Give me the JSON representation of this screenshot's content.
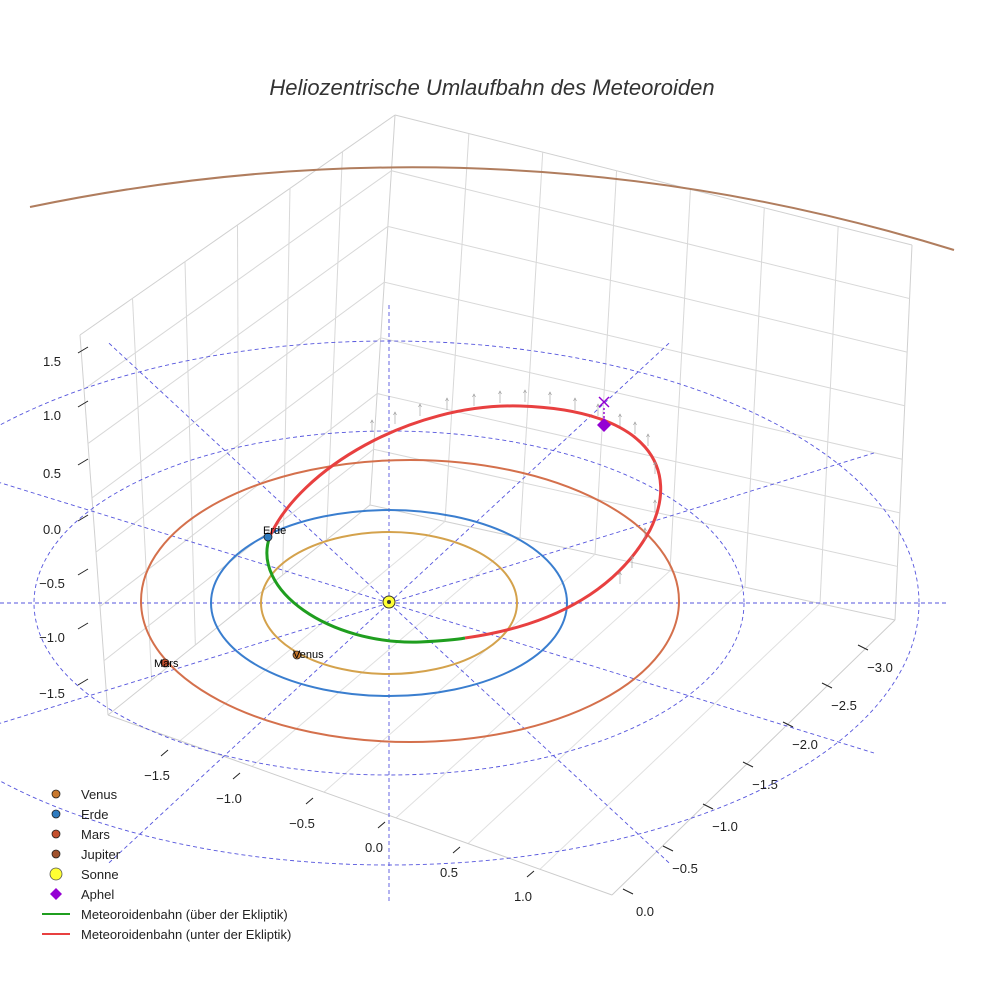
{
  "chart_data": {
    "type": "line",
    "title": "Heliozentrische Umlaufbahn des Meteoroiden",
    "xlabel": "",
    "ylabel": "",
    "zlabel": "",
    "axis_ticks": {
      "x": [
        "−1.5",
        "−1.0",
        "−0.5",
        "0.0",
        "0.5",
        "1.0"
      ],
      "y": [
        "0.0",
        "−0.5",
        "−1.0",
        "−1.5",
        "−2.0",
        "−2.5",
        "−3.0"
      ],
      "z": [
        "1.5",
        "1.0",
        "0.5",
        "0.0",
        "−0.5",
        "−1.0",
        "−1.5"
      ]
    },
    "planet_orbits": [
      {
        "name": "Venus",
        "radius_au": 0.72,
        "color": "#d4a24c"
      },
      {
        "name": "Erde",
        "radius_au": 1.0,
        "color": "#3a7ecf"
      },
      {
        "name": "Mars",
        "radius_au": 1.52,
        "color": "#d4704c"
      },
      {
        "name": "Jupiter",
        "radius_au": 5.2,
        "color": "#b07d5e"
      }
    ],
    "planet_markers": [
      {
        "name": "Venus",
        "label": "Venus",
        "color": "#c8782d"
      },
      {
        "name": "Erde",
        "label": "Erde",
        "color": "#2e7bbf"
      },
      {
        "name": "Mars",
        "label": "Mars",
        "color": "#c4502d"
      }
    ],
    "sun": {
      "name": "Sonne",
      "color": "#ffff33"
    },
    "aphel": {
      "name": "Aphel",
      "color": "#9400d3"
    },
    "meteoroid_orbit": {
      "above": {
        "name": "Meteoroidenbahn (über der Ekliptik)",
        "color": "#1f9e1f"
      },
      "below": {
        "name": "Meteoroidenbahn (unter der Ekliptik)",
        "color": "#e84040"
      }
    },
    "grid": true,
    "legend_position": "bottom-left"
  },
  "legend": [
    {
      "label": "Venus",
      "kind": "dot",
      "color": "#c8782d"
    },
    {
      "label": "Erde",
      "kind": "dot",
      "color": "#2e7bbf"
    },
    {
      "label": "Mars",
      "kind": "dot",
      "color": "#c4502d"
    },
    {
      "label": "Jupiter",
      "kind": "dot",
      "color": "#a0522d"
    },
    {
      "label": "Sonne",
      "kind": "sun",
      "color": "#ffff33"
    },
    {
      "label": "Aphel",
      "kind": "diamond",
      "color": "#9400d3"
    },
    {
      "label": "Meteoroidenbahn (über der Ekliptik)",
      "kind": "line",
      "color": "#1f9e1f"
    },
    {
      "label": "Meteoroidenbahn (unter der Ekliptik)",
      "kind": "line",
      "color": "#e84040"
    }
  ]
}
